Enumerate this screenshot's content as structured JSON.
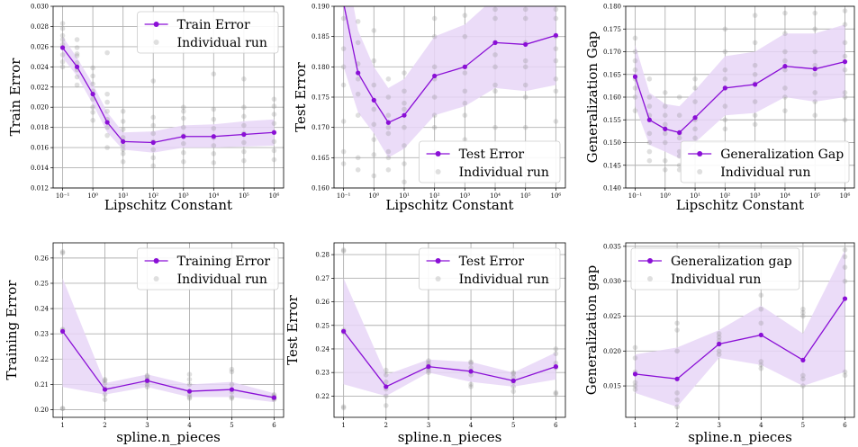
{
  "figure": {
    "colors": {
      "line": "#8a0fd6",
      "band": "#e8d6f7",
      "runs": "#8c8c8c",
      "grid": "#b0b0b0"
    }
  },
  "chart_data": [
    {
      "type": "line",
      "xscale": "log",
      "x": [
        0.1,
        0.3,
        1,
        3,
        10,
        100,
        1000,
        10000,
        100000,
        1000000
      ],
      "xticks": [
        0.1,
        1,
        10,
        100,
        1000,
        10000,
        100000,
        1000000
      ],
      "xtick_labels": [
        "10⁻¹",
        "10⁰",
        "10¹",
        "10²",
        "10³",
        "10⁴",
        "10⁵",
        "10⁶"
      ],
      "ylim": [
        0.012,
        0.03
      ],
      "yticks": [
        "0.012",
        "0.014",
        "0.016",
        "0.018",
        "0.020",
        "0.022",
        "0.024",
        "0.026",
        "0.028",
        "0.030"
      ],
      "xlabel": "Lipschitz Constant",
      "ylabel": "Train Error",
      "legend_position": "top-right",
      "series": [
        {
          "name": "Train Error",
          "values": [
            0.0259,
            0.024,
            0.0213,
            0.0185,
            0.0166,
            0.0165,
            0.0171,
            0.0171,
            0.0173,
            0.0175
          ]
        },
        {
          "name": "Individual run"
        }
      ],
      "band_lower": [
        0.0249,
        0.0231,
        0.0203,
        0.0175,
        0.0158,
        0.0155,
        0.016,
        0.016,
        0.0161,
        0.0162
      ],
      "band_upper": [
        0.027,
        0.0249,
        0.0223,
        0.0195,
        0.0175,
        0.0176,
        0.0182,
        0.0183,
        0.0186,
        0.0188
      ],
      "runs": [
        [
          0.0245,
          0.0252,
          0.0262,
          0.0271,
          0.0278,
          0.0283,
          0.0267,
          0.024
        ],
        [
          0.023,
          0.0237,
          0.0244,
          0.0251,
          0.0259,
          0.0267,
          0.0222,
          0.0253
        ],
        [
          0.02,
          0.0208,
          0.0216,
          0.0223,
          0.0231,
          0.0187,
          0.0195,
          0.0239
        ],
        [
          0.0172,
          0.018,
          0.0188,
          0.0196,
          0.0205,
          0.016,
          0.0213,
          0.0254
        ],
        [
          0.0146,
          0.0154,
          0.0162,
          0.017,
          0.0178,
          0.0186,
          0.0196,
          0.0158
        ],
        [
          0.0142,
          0.015,
          0.0158,
          0.0166,
          0.0174,
          0.0182,
          0.019,
          0.0226
        ],
        [
          0.0146,
          0.0155,
          0.0164,
          0.0172,
          0.018,
          0.0189,
          0.0196,
          0.02
        ],
        [
          0.0145,
          0.0154,
          0.0162,
          0.017,
          0.0179,
          0.0188,
          0.0198,
          0.0233
        ],
        [
          0.0147,
          0.0156,
          0.0165,
          0.0174,
          0.0182,
          0.0191,
          0.02,
          0.0228
        ],
        [
          0.0148,
          0.0157,
          0.0166,
          0.0175,
          0.0184,
          0.0193,
          0.0201,
          0.0208
        ]
      ]
    },
    {
      "type": "line",
      "xscale": "log",
      "x": [
        0.1,
        0.3,
        1,
        3,
        10,
        100,
        1000,
        10000,
        100000,
        1000000
      ],
      "xticks": [
        0.1,
        1,
        10,
        100,
        1000,
        10000,
        100000,
        1000000
      ],
      "xtick_labels": [
        "10⁻¹",
        "10⁰",
        "10¹",
        "10²",
        "10³",
        "10⁴",
        "10⁵",
        "10⁶"
      ],
      "ylim": [
        0.16,
        0.19
      ],
      "yticks": [
        "0.160",
        "0.165",
        "0.170",
        "0.175",
        "0.180",
        "0.185",
        "0.190"
      ],
      "xlabel": "Lipschitz Constant",
      "ylabel": "Test Error",
      "legend_position": "bottom-right",
      "series": [
        {
          "name": "Test Error",
          "values": [
            0.1905,
            0.179,
            0.1745,
            0.1708,
            0.172,
            0.1785,
            0.18,
            0.184,
            0.1837,
            0.1852
          ]
        },
        {
          "name": "Individual run"
        }
      ],
      "band_lower": [
        0.18,
        0.1725,
        0.169,
        0.165,
        0.1665,
        0.172,
        0.1735,
        0.1765,
        0.176,
        0.177
      ],
      "band_upper": [
        0.199,
        0.186,
        0.18,
        0.1765,
        0.178,
        0.185,
        0.187,
        0.1915,
        0.1915,
        0.1935
      ],
      "runs": [
        [
          0.164,
          0.171,
          0.177,
          0.183,
          0.188,
          0.192,
          0.166,
          0.18
        ],
        [
          0.165,
          0.172,
          0.178,
          0.184,
          0.1875,
          0.163,
          0.1755,
          0.1805
        ],
        [
          0.162,
          0.168,
          0.173,
          0.177,
          0.181,
          0.186,
          0.1705,
          0.1655
        ],
        [
          0.163,
          0.166,
          0.169,
          0.172,
          0.175,
          0.178,
          0.165,
          0.17
        ],
        [
          0.164,
          0.167,
          0.17,
          0.173,
          0.176,
          0.179,
          0.161,
          0.174
        ],
        [
          0.166,
          0.17,
          0.175,
          0.18,
          0.185,
          0.188,
          0.172,
          0.178
        ],
        [
          0.168,
          0.172,
          0.176,
          0.18,
          0.185,
          0.1885,
          0.174,
          0.179
        ],
        [
          0.17,
          0.176,
          0.18,
          0.184,
          0.188,
          0.1895,
          0.177,
          0.182
        ],
        [
          0.17,
          0.175,
          0.18,
          0.184,
          0.188,
          0.1895,
          0.177,
          0.181
        ],
        [
          0.171,
          0.176,
          0.181,
          0.185,
          0.188,
          0.1895,
          0.178,
          0.183
        ]
      ]
    },
    {
      "type": "line",
      "xscale": "log",
      "x": [
        0.1,
        0.3,
        1,
        3,
        10,
        100,
        1000,
        10000,
        100000,
        1000000
      ],
      "xticks": [
        0.1,
        1,
        10,
        100,
        1000,
        10000,
        100000,
        1000000
      ],
      "xtick_labels": [
        "10⁻¹",
        "10⁰",
        "10¹",
        "10²",
        "10³",
        "10⁴",
        "10⁵",
        "10⁶"
      ],
      "ylim": [
        0.14,
        0.18
      ],
      "yticks": [
        "0.140",
        "0.145",
        "0.150",
        "0.155",
        "0.160",
        "0.165",
        "0.170",
        "0.175",
        "0.180"
      ],
      "xlabel": "Lipschitz Constant",
      "ylabel": "Generalization Gap",
      "legend_position": "bottom-right",
      "series": [
        {
          "name": "Generalization Gap",
          "values": [
            0.1645,
            0.155,
            0.153,
            0.1522,
            0.1555,
            0.162,
            0.1628,
            0.1668,
            0.1662,
            0.1678
          ]
        },
        {
          "name": "Individual run"
        }
      ],
      "band_lower": [
        0.158,
        0.1495,
        0.148,
        0.1465,
        0.15,
        0.156,
        0.1565,
        0.16,
        0.159,
        0.16
      ],
      "band_upper": [
        0.1715,
        0.161,
        0.1585,
        0.158,
        0.1615,
        0.169,
        0.17,
        0.174,
        0.174,
        0.176
      ],
      "runs": [
        [
          0.157,
          0.162,
          0.166,
          0.17,
          0.173,
          0.16,
          0.168,
          0.164
        ],
        [
          0.148,
          0.152,
          0.156,
          0.16,
          0.164,
          0.15,
          0.158,
          0.146
        ],
        [
          0.146,
          0.15,
          0.154,
          0.158,
          0.161,
          0.144,
          0.152,
          0.156
        ],
        [
          0.144,
          0.148,
          0.152,
          0.156,
          0.16,
          0.145,
          0.151,
          0.147
        ],
        [
          0.147,
          0.151,
          0.155,
          0.159,
          0.164,
          0.148,
          0.153,
          0.162
        ],
        [
          0.153,
          0.158,
          0.162,
          0.166,
          0.17,
          0.175,
          0.155,
          0.164
        ],
        [
          0.154,
          0.159,
          0.163,
          0.167,
          0.172,
          0.178,
          0.156,
          0.165
        ],
        [
          0.157,
          0.162,
          0.166,
          0.17,
          0.174,
          0.1785,
          0.16,
          0.168
        ],
        [
          0.156,
          0.161,
          0.165,
          0.17,
          0.175,
          0.1785,
          0.159,
          0.167
        ],
        [
          0.155,
          0.161,
          0.166,
          0.172,
          0.176,
          0.179,
          0.16,
          0.169
        ]
      ]
    },
    {
      "type": "line",
      "xscale": "linear",
      "x": [
        1,
        2,
        3,
        4,
        5,
        6
      ],
      "xticks": [
        1,
        2,
        3,
        4,
        5,
        6
      ],
      "xtick_labels": [
        "1",
        "2",
        "3",
        "4",
        "5",
        "6"
      ],
      "ylim": [
        0.197,
        0.266
      ],
      "yticks": [
        "0.20",
        "0.21",
        "0.22",
        "0.23",
        "0.24",
        "0.25",
        "0.26"
      ],
      "xlabel": "spline.n_pieces",
      "ylabel": "Training Error",
      "legend_position": "top-right",
      "series": [
        {
          "name": "Training Error",
          "values": [
            0.231,
            0.208,
            0.2115,
            0.2073,
            0.208,
            0.2048
          ]
        },
        {
          "name": "Individual run"
        }
      ],
      "band_lower": [
        0.209,
        0.206,
        0.209,
        0.205,
        0.205,
        0.203
      ],
      "band_upper": [
        0.252,
        0.2105,
        0.214,
        0.21,
        0.211,
        0.2065
      ],
      "runs": [
        [
          0.2005,
          0.2005,
          0.262,
          0.2625,
          0.2315,
          0.2318
        ],
        [
          0.204,
          0.2085,
          0.2105,
          0.2115,
          0.212,
          0.206
        ],
        [
          0.209,
          0.212,
          0.213,
          0.2135,
          0.21,
          0.211
        ],
        [
          0.2045,
          0.205,
          0.206,
          0.21,
          0.214,
          0.212
        ],
        [
          0.2045,
          0.205,
          0.207,
          0.21,
          0.215,
          0.216
        ],
        [
          0.204,
          0.2045,
          0.205,
          0.2055,
          0.206,
          0.2045
        ]
      ]
    },
    {
      "type": "line",
      "xscale": "linear",
      "x": [
        1,
        2,
        3,
        4,
        5,
        6
      ],
      "xticks": [
        1,
        2,
        3,
        4,
        5,
        6
      ],
      "xtick_labels": [
        "1",
        "2",
        "3",
        "4",
        "5",
        "6"
      ],
      "ylim": [
        0.211,
        0.285
      ],
      "yticks": [
        "0.22",
        "0.23",
        "0.24",
        "0.25",
        "0.26",
        "0.27",
        "0.28"
      ],
      "xlabel": "spline.n_pieces",
      "ylabel": "Test Error",
      "legend_position": "top-right",
      "series": [
        {
          "name": "Test Error",
          "values": [
            0.2475,
            0.224,
            0.2325,
            0.2305,
            0.2265,
            0.2325
          ]
        },
        {
          "name": "Individual run"
        }
      ],
      "band_lower": [
        0.225,
        0.22,
        0.23,
        0.226,
        0.224,
        0.227
      ],
      "band_upper": [
        0.27,
        0.229,
        0.2355,
        0.2345,
        0.23,
        0.2385
      ],
      "runs": [
        [
          0.215,
          0.2155,
          0.247,
          0.248,
          0.2815,
          0.282
        ],
        [
          0.216,
          0.223,
          0.226,
          0.229,
          0.231,
          0.22
        ],
        [
          0.231,
          0.232,
          0.233,
          0.234,
          0.235,
          0.23
        ],
        [
          0.224,
          0.225,
          0.229,
          0.232,
          0.234,
          0.2345
        ],
        [
          0.222,
          0.224,
          0.226,
          0.228,
          0.2295,
          0.23
        ],
        [
          0.221,
          0.2215,
          0.232,
          0.234,
          0.238,
          0.24
        ]
      ]
    },
    {
      "type": "line",
      "xscale": "linear",
      "x": [
        1,
        2,
        3,
        4,
        5,
        6
      ],
      "xticks": [
        1,
        2,
        3,
        4,
        5,
        6
      ],
      "xtick_labels": [
        "1",
        "2",
        "3",
        "4",
        "5",
        "6"
      ],
      "ylim": [
        0.0105,
        0.0355
      ],
      "yticks": [
        "0.015",
        "0.020",
        "0.025",
        "0.030",
        "0.035"
      ],
      "xlabel": "spline.n_pieces",
      "ylabel": "Generalization gap",
      "legend_position": "top-left",
      "series": [
        {
          "name": "Generalization gap",
          "values": [
            0.0167,
            0.016,
            0.021,
            0.0223,
            0.0187,
            0.0275
          ]
        },
        {
          "name": "Individual run"
        }
      ],
      "band_lower": [
        0.014,
        0.012,
        0.019,
        0.018,
        0.015,
        0.017
      ],
      "band_upper": [
        0.0195,
        0.0205,
        0.023,
        0.0265,
        0.0225,
        0.0345
      ],
      "runs": [
        [
          0.0145,
          0.015,
          0.0155,
          0.017,
          0.019,
          0.0205
        ],
        [
          0.012,
          0.013,
          0.014,
          0.02,
          0.023,
          0.024
        ],
        [
          0.0195,
          0.02,
          0.021,
          0.0215,
          0.022,
          0.0225
        ],
        [
          0.0175,
          0.018,
          0.0185,
          0.024,
          0.026,
          0.028
        ],
        [
          0.015,
          0.016,
          0.0165,
          0.025,
          0.0255,
          0.026
        ],
        [
          0.0165,
          0.017,
          0.03,
          0.032,
          0.0335,
          0.0345
        ]
      ]
    }
  ]
}
